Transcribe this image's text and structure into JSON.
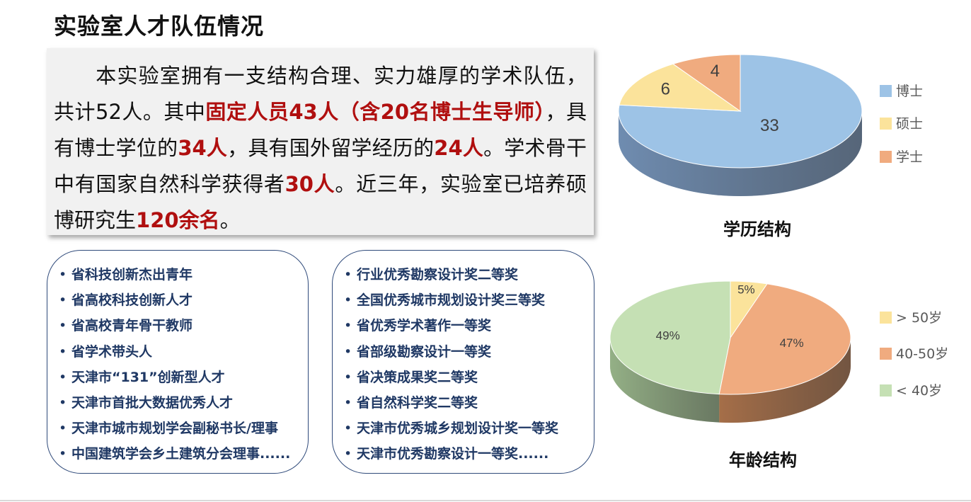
{
  "title": "实验室人才队伍情况",
  "intro": {
    "p1": "本实验室拥有一支结构合理、实力雄厚的学术队伍，共计52人。其中",
    "h1": "固定人员43人（含20名博士生导师）",
    "p2": "，具有博士学位的",
    "h2": "34人",
    "p3": "，具有国外留学经历的",
    "h3": "24人",
    "p4": "。学术骨干中有国家自然科学获得者",
    "h4": "30人",
    "p5": "。近三年，实验室已培养硕博研究生",
    "h5": "120余名",
    "p6": "。"
  },
  "talents": [
    "省科技创新杰出青年",
    "省高校科技创新人才",
    "省高校青年骨干教师",
    "省学术带头人",
    "天津市“131”创新型人才",
    "天津市首批大数据优秀人才",
    "天津市城市规划学会副秘书长/理事",
    "中国建筑学会乡土建筑分会理事......"
  ],
  "awards": [
    "行业优秀勘察设计奖二等奖",
    "全国优秀城市规划设计奖三等奖",
    "省优秀学术著作一等奖",
    "省部级勘察设计一等奖",
    "省决策成果奖二等奖",
    "省自然科学奖二等奖",
    "天津市优秀城乡规划设计奖一等奖",
    "天津市优秀勘察设计一等奖......"
  ],
  "bullet": "•",
  "chart_data": [
    {
      "type": "pie",
      "title": "学历结构",
      "categories": [
        "博士",
        "硕士",
        "学士"
      ],
      "values": [
        33,
        6,
        4
      ],
      "labels": [
        "33",
        "6",
        "4"
      ],
      "colors": [
        "#9dc3e6",
        "#fbe39b",
        "#f0ab7f"
      ],
      "side_colors": [
        "#6f8cb0",
        "#cdb574",
        "#c98a63"
      ],
      "legend": "right",
      "style": "3d"
    },
    {
      "type": "pie",
      "title": "年龄结构",
      "categories": [
        "> 50岁",
        "40-50岁",
        "< 40岁"
      ],
      "values": [
        5,
        47,
        49
      ],
      "labels": [
        "5%",
        "47%",
        "49%"
      ],
      "colors": [
        "#fbe39b",
        "#f0ab7f",
        "#c5e0b4"
      ],
      "side_colors": [
        "#cdb574",
        "#a56e48",
        "#94b086"
      ],
      "legend": "right",
      "style": "3d"
    }
  ]
}
